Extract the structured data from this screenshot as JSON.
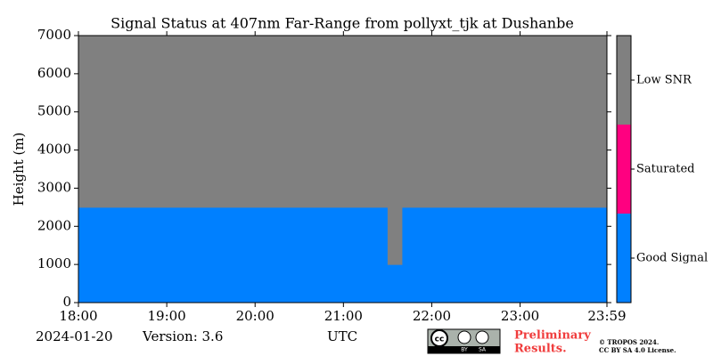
{
  "chart_data": {
    "type": "heatmap",
    "title": "Signal Status at 407nm Far-Range from pollyxt_tjk at Dushanbe",
    "y_label": "Height (m)",
    "x_label": "UTC",
    "date": "2024-01-20",
    "version": "Version: 3.6",
    "xlim": [
      0,
      359
    ],
    "xticks": [
      {
        "value": 0,
        "label": "18:00"
      },
      {
        "value": 60,
        "label": "19:00"
      },
      {
        "value": 120,
        "label": "20:00"
      },
      {
        "value": 180,
        "label": "21:00"
      },
      {
        "value": 240,
        "label": "22:00"
      },
      {
        "value": 300,
        "label": "23:00"
      },
      {
        "value": 359,
        "label": "23:59"
      }
    ],
    "ylim": [
      0,
      7000
    ],
    "yticks": [
      0,
      1000,
      2000,
      3000,
      4000,
      5000,
      6000,
      7000
    ],
    "x": [
      0,
      20,
      40,
      60,
      80,
      100,
      120,
      140,
      160,
      180,
      200,
      210,
      220,
      240,
      260,
      280,
      300,
      320,
      340
    ],
    "y": [
      0,
      500,
      1000,
      1500,
      2000,
      2500,
      3000,
      3500,
      4000,
      4500,
      5000,
      5500,
      6000,
      6500
    ],
    "z": [
      [
        0,
        0,
        0,
        0,
        0,
        0,
        0,
        0,
        0,
        0,
        0,
        0,
        0,
        0,
        0,
        0,
        0,
        0,
        0
      ],
      [
        0,
        0,
        0,
        0,
        0,
        0,
        0,
        0,
        0,
        0,
        0,
        0,
        0,
        0,
        0,
        0,
        0,
        0,
        0
      ],
      [
        0,
        0,
        0,
        0,
        0,
        0,
        0,
        0,
        0,
        0,
        0,
        2,
        0,
        0,
        0,
        0,
        0,
        0,
        0
      ],
      [
        0,
        0,
        0,
        0,
        0,
        0,
        0,
        0,
        0,
        0,
        0,
        2,
        0,
        0,
        0,
        0,
        0,
        0,
        0
      ],
      [
        0,
        0,
        0,
        0,
        0,
        0,
        0,
        0,
        0,
        0,
        0,
        2,
        0,
        0,
        0,
        0,
        0,
        0,
        0
      ],
      [
        2,
        2,
        2,
        2,
        2,
        2,
        2,
        2,
        2,
        2,
        2,
        2,
        2,
        2,
        2,
        2,
        2,
        2,
        2
      ],
      [
        2,
        2,
        2,
        2,
        2,
        2,
        2,
        2,
        2,
        2,
        2,
        2,
        2,
        2,
        2,
        2,
        2,
        2,
        2
      ],
      [
        2,
        2,
        2,
        2,
        2,
        2,
        2,
        2,
        2,
        2,
        2,
        2,
        2,
        2,
        2,
        2,
        2,
        2,
        2
      ],
      [
        2,
        2,
        2,
        2,
        2,
        2,
        2,
        2,
        2,
        2,
        2,
        2,
        2,
        2,
        2,
        2,
        2,
        2,
        2
      ],
      [
        2,
        2,
        2,
        2,
        2,
        2,
        2,
        2,
        2,
        2,
        2,
        2,
        2,
        2,
        2,
        2,
        2,
        2,
        2
      ],
      [
        2,
        2,
        2,
        2,
        2,
        2,
        2,
        2,
        2,
        2,
        2,
        2,
        2,
        2,
        2,
        2,
        2,
        2,
        2
      ],
      [
        2,
        2,
        2,
        2,
        2,
        2,
        2,
        2,
        2,
        2,
        2,
        2,
        2,
        2,
        2,
        2,
        2,
        2,
        2
      ],
      [
        2,
        2,
        2,
        2,
        2,
        2,
        2,
        2,
        2,
        2,
        2,
        2,
        2,
        2,
        2,
        2,
        2,
        2,
        2
      ],
      [
        2,
        2,
        2,
        2,
        2,
        2,
        2,
        2,
        2,
        2,
        2,
        2,
        2,
        2,
        2,
        2,
        2,
        2,
        2
      ]
    ],
    "colorbar": {
      "categories": [
        "Good Signal",
        "Saturated",
        "Low SNR"
      ],
      "colors": [
        "#0080ff",
        "#ff0080",
        "#808080"
      ]
    },
    "badge": {
      "cc": "cc",
      "by": "BY",
      "sa": "SA"
    },
    "preliminary": [
      "Preliminary",
      "Results."
    ],
    "copyright": [
      "© TROPOS 2024.",
      "CC BY SA 4.0 License."
    ]
  }
}
